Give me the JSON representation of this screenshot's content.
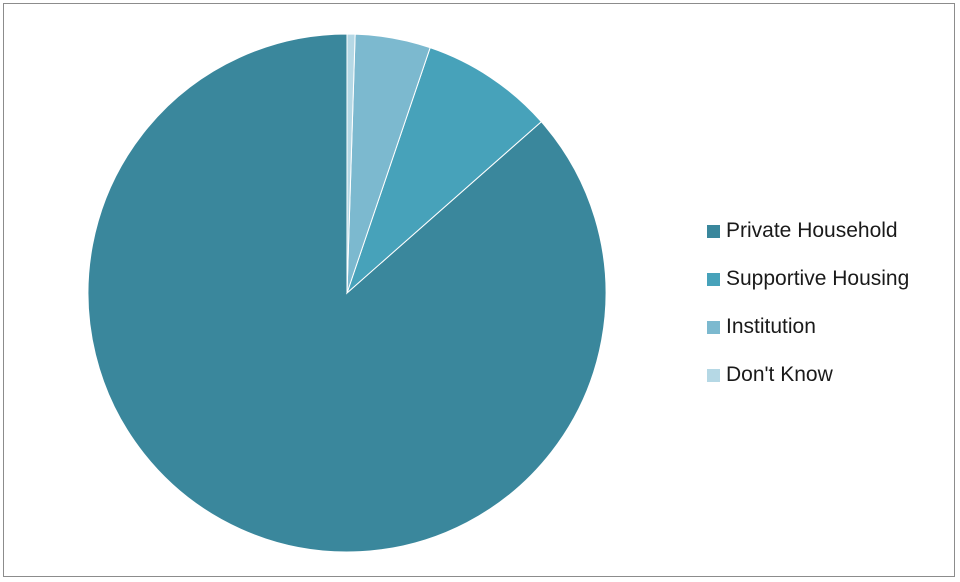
{
  "chart_data": {
    "type": "pie",
    "title": "",
    "legend_position": "right",
    "categories": [
      "Private Household",
      "Supportive Housing",
      "Institution",
      "Don't Know"
    ],
    "values": [
      86.5,
      8.3,
      4.7,
      0.5
    ],
    "colors": [
      "#3a879c",
      "#47a2ba",
      "#7cb9cf",
      "#b5d8e5"
    ],
    "start_angle_deg": 0,
    "direction": "counterclockwise"
  }
}
